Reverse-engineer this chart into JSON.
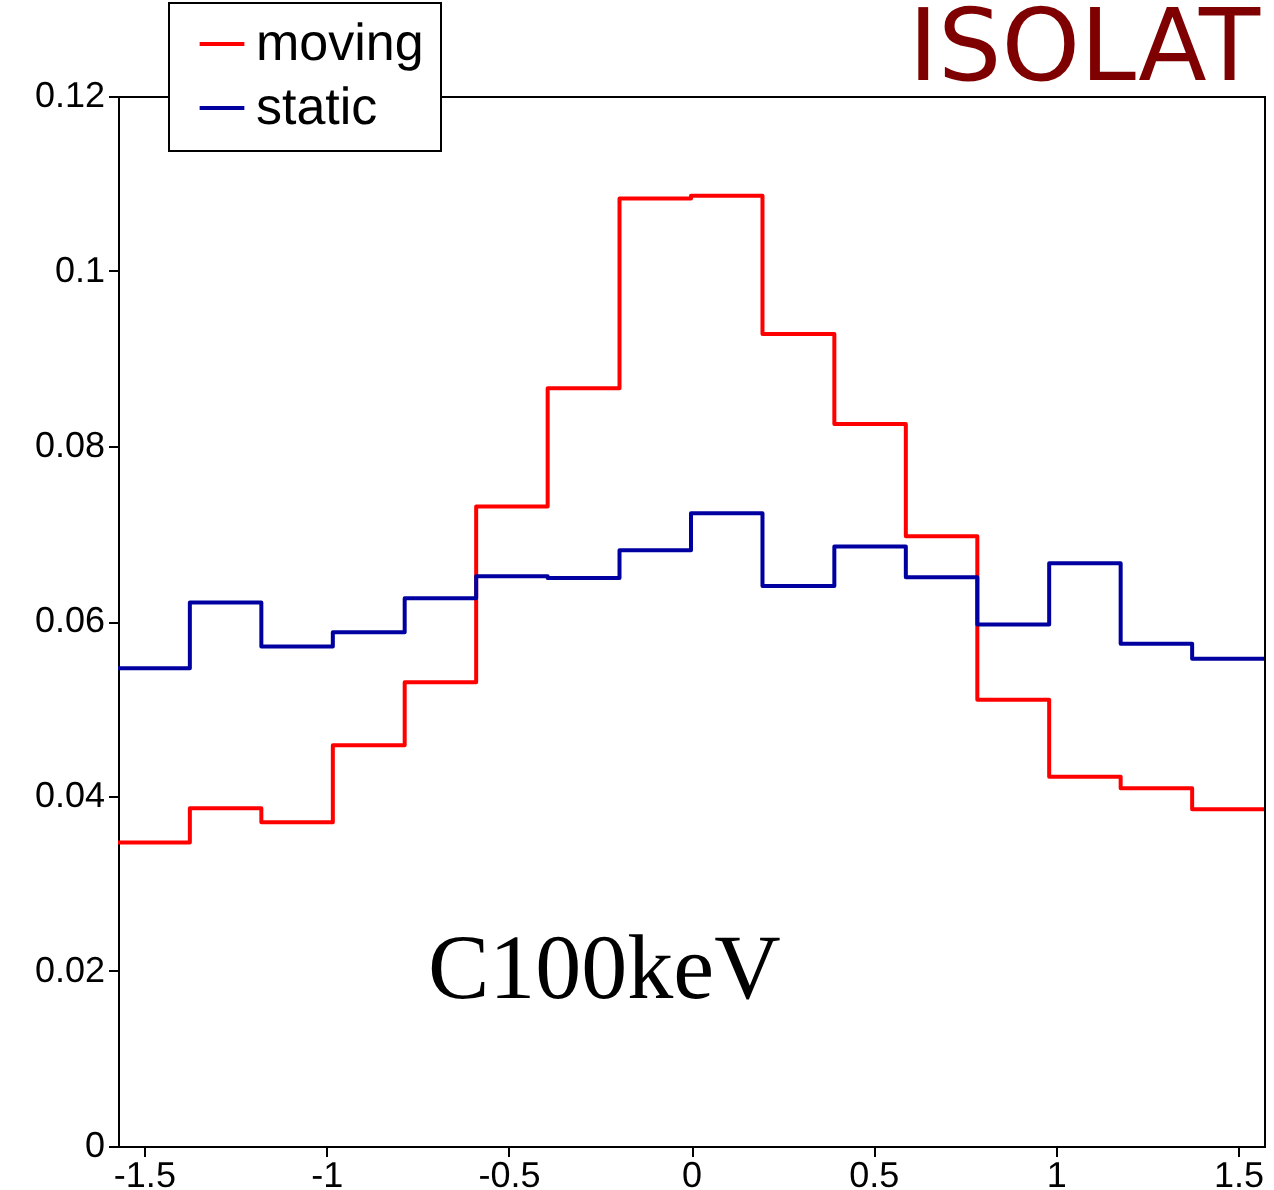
{
  "chart_data": {
    "type": "histogram",
    "bins": [
      -1.571,
      -1.374,
      -1.178,
      -0.982,
      -0.785,
      -0.589,
      -0.393,
      -0.196,
      0,
      0.196,
      0.393,
      0.589,
      0.785,
      0.982,
      1.178,
      1.374,
      1.571
    ],
    "series": [
      {
        "name": "moving",
        "color": "#ff0000",
        "values": [
          0.0347,
          0.0386,
          0.037,
          0.0458,
          0.053,
          0.0731,
          0.0866,
          0.1083,
          0.1086,
          0.0928,
          0.0825,
          0.0697,
          0.051,
          0.0422,
          0.0409,
          0.0385
        ]
      },
      {
        "name": "static",
        "color": "#0000a0",
        "values": [
          0.0546,
          0.0621,
          0.0571,
          0.0587,
          0.0626,
          0.0651,
          0.0649,
          0.0681,
          0.0723,
          0.064,
          0.0685,
          0.065,
          0.0596,
          0.0666,
          0.0574,
          0.0557
        ]
      }
    ],
    "xlim": [
      -1.571,
      1.571
    ],
    "xticks": [
      -1.5,
      -1,
      -0.5,
      0,
      0.5,
      1,
      1.5
    ],
    "ylim": [
      0,
      0.12
    ],
    "yticks": [
      0,
      0.02,
      0.04,
      0.06,
      0.08,
      0.1,
      0.12
    ],
    "legend": "top left",
    "grid": false,
    "annotations": [
      "C100keV",
      "ISOLAT"
    ]
  }
}
